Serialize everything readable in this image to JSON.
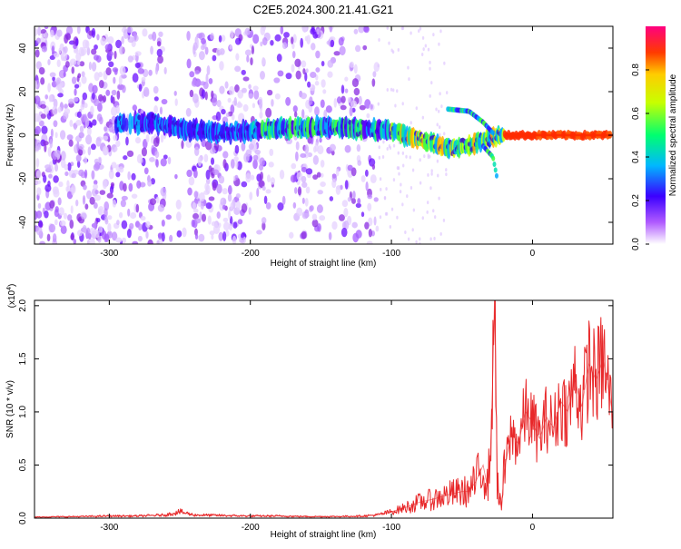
{
  "figure": {
    "title": "C2E5.2024.300.21.41.G21"
  },
  "chart_data": [
    {
      "type": "heatmap",
      "xlabel": "Height of straight line (km)",
      "ylabel": "Frequency (Hz)",
      "xlim": [
        -353,
        57
      ],
      "ylim": [
        -50,
        50
      ],
      "xticks": [
        -300,
        -200,
        -100,
        0
      ],
      "yticks": [
        -40,
        -20,
        0,
        20,
        40
      ],
      "colorbar": {
        "label": "Normalized spectral amplitude",
        "range": [
          0,
          1
        ],
        "ticks": [
          "0.0",
          "0.2",
          "0.4",
          "0.6",
          "0.8"
        ],
        "tick_values": [
          0.0,
          0.2,
          0.4,
          0.6,
          0.8
        ]
      },
      "ridge": {
        "x": [
          -295,
          -270,
          -250,
          -220,
          -200,
          -180,
          -150,
          -120,
          -100,
          -80,
          -60,
          -45,
          -35,
          -28,
          -20,
          0,
          56
        ],
        "y": [
          5,
          6,
          3,
          1,
          2,
          3,
          4,
          3,
          2,
          -2,
          -6,
          -5,
          -2,
          -1,
          0,
          0,
          0
        ]
      },
      "branches": [
        {
          "x": [
            -60,
            -45,
            -35,
            -28
          ],
          "y": [
            12,
            11,
            6,
            1
          ]
        },
        {
          "x": [
            -35,
            -28,
            -25
          ],
          "y": [
            -5,
            -10,
            -20
          ]
        }
      ]
    },
    {
      "type": "line",
      "xlabel": "Height of straight line (km)",
      "ylabel": "SNR (10 * v/v)",
      "multiplier": "(x10",
      "multiplier_exp": "4",
      "multiplier_close": ")",
      "xlim": [
        -353,
        57
      ],
      "ylim": [
        0,
        2.05
      ],
      "xticks": [
        -300,
        -200,
        -100,
        0
      ],
      "yticks": [
        "0.0",
        "0.5",
        "1.0",
        "1.5",
        "2.0"
      ],
      "ytick_values": [
        0,
        0.5,
        1.0,
        1.5,
        2.0
      ],
      "color": "#e8282a",
      "series": [
        {
          "x": [
            -353,
            -320,
            -300,
            -280,
            -260,
            -250,
            -240,
            -220,
            -200,
            -180,
            -160,
            -140,
            -120,
            -110,
            -100,
            -90,
            -80,
            -70,
            -60,
            -50,
            -45,
            -40,
            -35,
            -32,
            -30,
            -28,
            -27,
            -26,
            -25,
            -24,
            -22,
            -20,
            -15,
            -10,
            -5,
            0,
            5,
            10,
            15,
            20,
            25,
            30,
            35,
            40,
            45,
            50,
            56
          ],
          "y": [
            0.01,
            0.015,
            0.02,
            0.02,
            0.03,
            0.06,
            0.03,
            0.025,
            0.02,
            0.02,
            0.015,
            0.015,
            0.02,
            0.03,
            0.06,
            0.1,
            0.15,
            0.18,
            0.22,
            0.25,
            0.25,
            0.35,
            0.5,
            0.3,
            0.55,
            1.4,
            2.05,
            1.5,
            0.4,
            0.2,
            0.1,
            0.45,
            0.8,
            0.7,
            1.0,
            0.9,
            0.75,
            0.95,
            0.85,
            1.1,
            1.0,
            1.3,
            1.05,
            1.45,
            1.3,
            1.5,
            1.05
          ]
        }
      ]
    }
  ]
}
